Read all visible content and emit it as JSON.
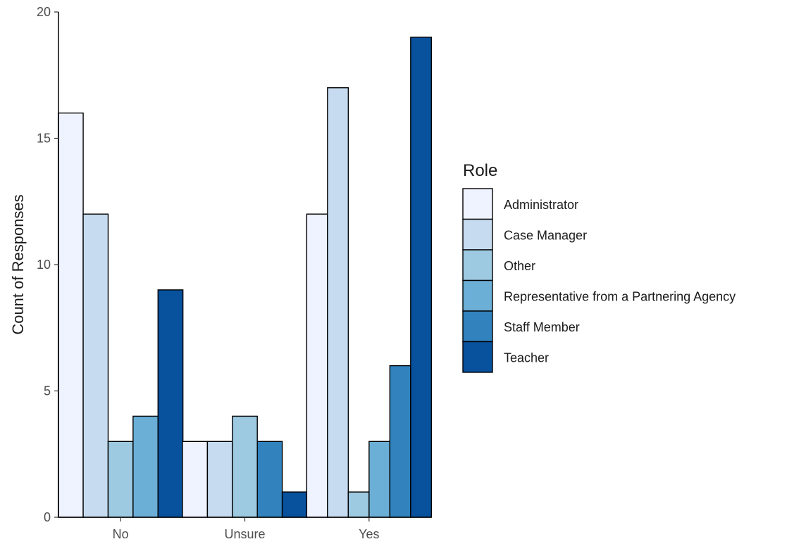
{
  "chart_data": {
    "type": "bar",
    "categories": [
      "No",
      "Unsure",
      "Yes"
    ],
    "xlabel": "",
    "ylabel": "Count of Responses",
    "ylim": [
      0,
      20
    ],
    "yticks": [
      "0",
      "5",
      "10",
      "15",
      "20"
    ],
    "grid": false,
    "legend": {
      "title": "Role",
      "position": "right"
    },
    "series": [
      {
        "name": "Administrator",
        "color": "#eff3ff",
        "values": [
          16,
          3,
          12
        ]
      },
      {
        "name": "Case Manager",
        "color": "#c6dbef",
        "values": [
          12,
          3,
          17
        ]
      },
      {
        "name": "Other",
        "color": "#9ecae1",
        "values": [
          3,
          4,
          1
        ]
      },
      {
        "name": "Representative from a Partnering Agency",
        "color": "#6baed6",
        "values": [
          4,
          0,
          3
        ]
      },
      {
        "name": "Staff Member",
        "color": "#3182bd",
        "values": [
          0,
          3,
          6
        ]
      },
      {
        "name": "Teacher",
        "color": "#08519c",
        "values": [
          9,
          1,
          19
        ]
      }
    ]
  }
}
